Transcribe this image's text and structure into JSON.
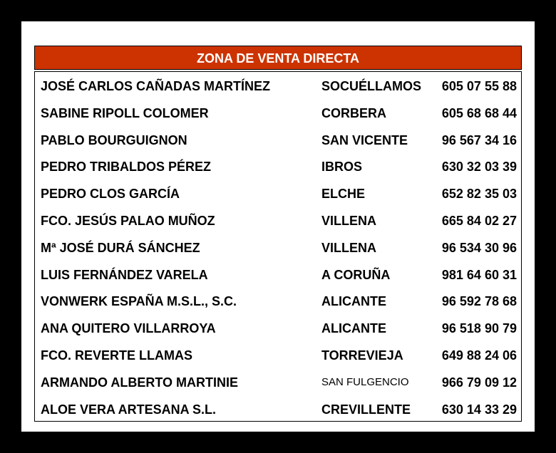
{
  "title": "ZONA DE VENTA DIRECTA",
  "rows": [
    {
      "name": "JOSÉ CARLOS CAÑADAS MARTÍNEZ",
      "city": "SOCUÉLLAMOS",
      "phone": "605 07 55 88"
    },
    {
      "name": "SABINE RIPOLL COLOMER",
      "city": "CORBERA",
      "phone": "605 68 68 44"
    },
    {
      "name": "PABLO BOURGUIGNON",
      "city": "SAN VICENTE",
      "phone": "96 567 34 16"
    },
    {
      "name": "PEDRO TRIBALDOS PÉREZ",
      "city": "IBROS",
      "phone": "630 32 03 39"
    },
    {
      "name": "PEDRO CLOS GARCÍA",
      "city": "ELCHE",
      "phone": "652 82 35 03"
    },
    {
      "name": "FCO. JESÚS PALAO MUÑOZ",
      "city": "VILLENA",
      "phone": "665 84 02 27"
    },
    {
      "name": "Mª JOSÉ DURÁ SÁNCHEZ",
      "city": "VILLENA",
      "phone": "96 534 30 96"
    },
    {
      "name": "LUIS FERNÁNDEZ VARELA",
      "city": "A CORUÑA",
      "phone": "981 64 60 31"
    },
    {
      "name": "VONWERK ESPAÑA M.S.L., S.C.",
      "city": "ALICANTE",
      "phone": "96 592 78 68"
    },
    {
      "name": "ANA QUITERO VILLARROYA",
      "city": "ALICANTE",
      "phone": "96 518 90 79"
    },
    {
      "name": "FCO. REVERTE LLAMAS",
      "city": "TORREVIEJA",
      "phone": "649 88 24 06"
    },
    {
      "name": "ARMANDO ALBERTO MARTINIE",
      "city": "SAN FULGENCIO",
      "phone": "966 79 09 12",
      "small_city": true
    },
    {
      "name": "ALOE VERA ARTESANA S.L.",
      "city": "CREVILLENTE",
      "phone": "630 14 33 29"
    }
  ],
  "colors": {
    "header_bg": "#cc3300",
    "header_text": "#ffffff",
    "background": "#000000",
    "panel": "#ffffff"
  }
}
